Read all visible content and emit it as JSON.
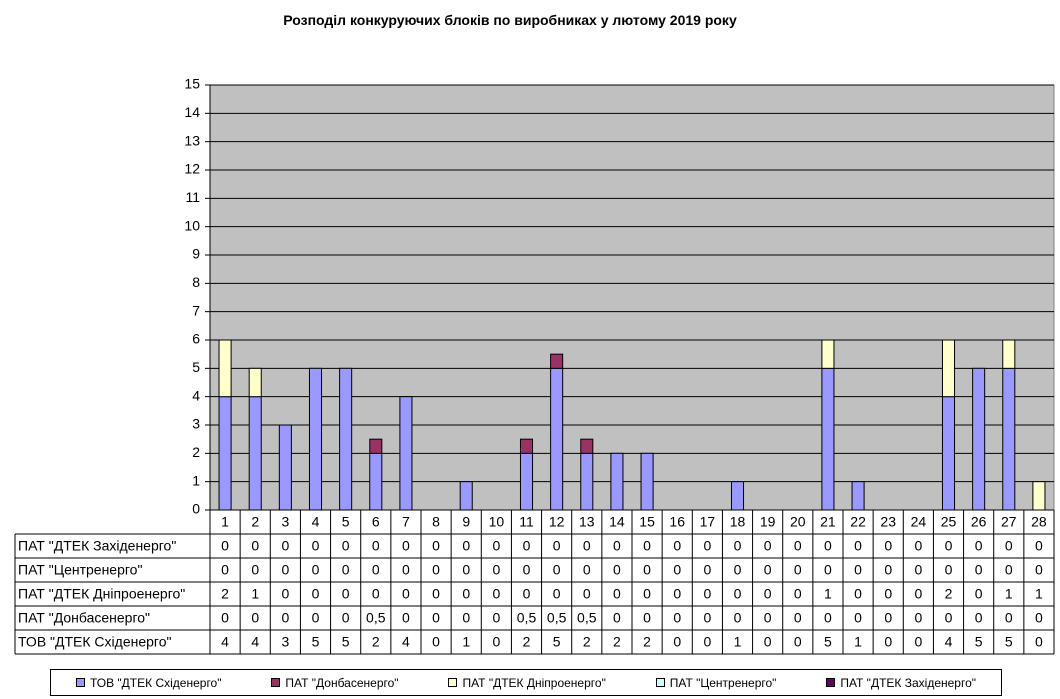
{
  "chart_data": {
    "type": "bar",
    "stacked": true,
    "title": "Розподіл конкуруючих блоків по виробниках у лютому  2019 року",
    "xlabel": "",
    "ylabel": "",
    "ylim": [
      0,
      15
    ],
    "yticks": [
      0,
      1,
      2,
      3,
      4,
      5,
      6,
      7,
      8,
      9,
      10,
      11,
      12,
      13,
      14,
      15
    ],
    "grid": true,
    "plot_background": "#c0c0c0",
    "categories": [
      "1",
      "2",
      "3",
      "4",
      "5",
      "6",
      "7",
      "8",
      "9",
      "10",
      "11",
      "12",
      "13",
      "14",
      "15",
      "16",
      "17",
      "18",
      "19",
      "20",
      "21",
      "22",
      "23",
      "24",
      "25",
      "26",
      "27",
      "28"
    ],
    "series": [
      {
        "name": "ТОВ \"ДТЕК Сxіденерго\"",
        "color": "#9999ff",
        "values": [
          4,
          4,
          3,
          5,
          5,
          2,
          4,
          0,
          1,
          0,
          2,
          5,
          2,
          2,
          2,
          0,
          0,
          1,
          0,
          0,
          5,
          1,
          0,
          0,
          4,
          5,
          5,
          0
        ],
        "labels": [
          "4",
          "4",
          "3",
          "5",
          "5",
          "2",
          "4",
          "0",
          "1",
          "0",
          "2",
          "5",
          "2",
          "2",
          "2",
          "0",
          "0",
          "1",
          "0",
          "0",
          "5",
          "1",
          "0",
          "0",
          "4",
          "5",
          "5",
          "0"
        ]
      },
      {
        "name": "ПАТ \"Донбасенерго\"",
        "color": "#993366",
        "values": [
          0,
          0,
          0,
          0,
          0,
          0.5,
          0,
          0,
          0,
          0,
          0.5,
          0.5,
          0.5,
          0,
          0,
          0,
          0,
          0,
          0,
          0,
          0,
          0,
          0,
          0,
          0,
          0,
          0,
          0
        ],
        "labels": [
          "0",
          "0",
          "0",
          "0",
          "0",
          "0,5",
          "0",
          "0",
          "0",
          "0",
          "0,5",
          "0,5",
          "0,5",
          "0",
          "0",
          "0",
          "0",
          "0",
          "0",
          "0",
          "0",
          "0",
          "0",
          "0",
          "0",
          "0",
          "0",
          "0"
        ]
      },
      {
        "name": "ПАТ \"ДТЕК Дніпроенерго\"",
        "color": "#ffffcc",
        "values": [
          2,
          1,
          0,
          0,
          0,
          0,
          0,
          0,
          0,
          0,
          0,
          0,
          0,
          0,
          0,
          0,
          0,
          0,
          0,
          0,
          1,
          0,
          0,
          0,
          2,
          0,
          1,
          1
        ],
        "labels": [
          "2",
          "1",
          "0",
          "0",
          "0",
          "0",
          "0",
          "0",
          "0",
          "0",
          "0",
          "0",
          "0",
          "0",
          "0",
          "0",
          "0",
          "0",
          "0",
          "0",
          "1",
          "0",
          "0",
          "0",
          "2",
          "0",
          "1",
          "1"
        ]
      },
      {
        "name": "ПАТ \"Центренерго\"",
        "color": "#ccffff",
        "values": [
          0,
          0,
          0,
          0,
          0,
          0,
          0,
          0,
          0,
          0,
          0,
          0,
          0,
          0,
          0,
          0,
          0,
          0,
          0,
          0,
          0,
          0,
          0,
          0,
          0,
          0,
          0,
          0
        ],
        "labels": [
          "0",
          "0",
          "0",
          "0",
          "0",
          "0",
          "0",
          "0",
          "0",
          "0",
          "0",
          "0",
          "0",
          "0",
          "0",
          "0",
          "0",
          "0",
          "0",
          "0",
          "0",
          "0",
          "0",
          "0",
          "0",
          "0",
          "0",
          "0"
        ]
      },
      {
        "name": "ПАТ \"ДТЕК Західенерго\"",
        "color": "#660066",
        "values": [
          0,
          0,
          0,
          0,
          0,
          0,
          0,
          0,
          0,
          0,
          0,
          0,
          0,
          0,
          0,
          0,
          0,
          0,
          0,
          0,
          0,
          0,
          0,
          0,
          0,
          0,
          0,
          0
        ],
        "labels": [
          "0",
          "0",
          "0",
          "0",
          "0",
          "0",
          "0",
          "0",
          "0",
          "0",
          "0",
          "0",
          "0",
          "0",
          "0",
          "0",
          "0",
          "0",
          "0",
          "0",
          "0",
          "0",
          "0",
          "0",
          "0",
          "0",
          "0",
          "0"
        ]
      }
    ],
    "table_rows": [
      {
        "name": "ПАТ \"ДТЕК Західенерго\"",
        "series_index": 4
      },
      {
        "name": "ПАТ \"Центренерго\"",
        "series_index": 3
      },
      {
        "name": "ПАТ \"ДТЕК Дніпроенерго\"",
        "series_index": 2
      },
      {
        "name": "ПАТ \"Донбасенерго\"",
        "series_index": 1
      },
      {
        "name": "ТОВ \"ДТЕК Сxіденерго\"",
        "series_index": 0
      }
    ],
    "legend": {
      "placement": "bottom",
      "items": [
        "ТОВ \"ДТЕК Сxіденерго\"",
        "ПАТ \"Донбасенерго\"",
        "ПАТ \"ДТЕК Дніпроенерго\"",
        "ПАТ \"Центренерго\"",
        "ПАТ \"ДТЕК Західенерго\""
      ]
    }
  }
}
